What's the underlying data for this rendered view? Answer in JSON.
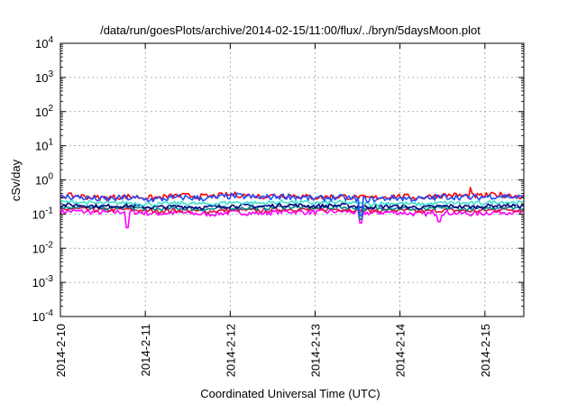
{
  "chart_data": {
    "type": "line",
    "title": "/data/run/goesPlots/archive/2014-02-15/11:00/flux/../bryn/5daysMoon.plot",
    "xlabel": "Coordinated Universal Time (UTC)",
    "ylabel": "cSv/day",
    "yscale": "log",
    "ylim": [
      0.0001,
      10000
    ],
    "xlim": [
      "2014-02-10T00:00",
      "2014-02-15T11:00"
    ],
    "grid": true,
    "x_ticks": [
      "2014-2-10",
      "2014-2-11",
      "2014-2-12",
      "2014-2-13",
      "2014-2-14",
      "2014-2-15"
    ],
    "y_ticks": [
      {
        "base": "10",
        "exp": "-4"
      },
      {
        "base": "10",
        "exp": "-3"
      },
      {
        "base": "10",
        "exp": "-2"
      },
      {
        "base": "10",
        "exp": "-1"
      },
      {
        "base": "10",
        "exp": "0"
      },
      {
        "base": "10",
        "exp": "1"
      },
      {
        "base": "10",
        "exp": "2"
      },
      {
        "base": "10",
        "exp": "3"
      },
      {
        "base": "10",
        "exp": "4"
      }
    ],
    "series": [
      {
        "color": "#ff00ff",
        "level": 0.11,
        "spread": 0.14,
        "dips": [
          [
            "2014-02-10T19:00",
            0.04
          ],
          [
            "2014-02-13T13:00",
            0.055
          ],
          [
            "2014-02-14T11:00",
            0.06
          ]
        ]
      },
      {
        "color": "#e0143c",
        "level": 0.13,
        "spread": 0.12,
        "dips": []
      },
      {
        "color": "#008b8b",
        "level": 0.15,
        "spread": 0.12,
        "dips": [
          [
            "2014-02-13T13:00",
            0.07
          ]
        ]
      },
      {
        "color": "#000080",
        "level": 0.17,
        "spread": 0.12,
        "dips": []
      },
      {
        "color": "#40e0d0",
        "level": 0.21,
        "spread": 0.12,
        "dips": []
      },
      {
        "color": "#ff0000",
        "level": 0.33,
        "spread": 0.16,
        "dips": [
          [
            "2014-02-14T20:00",
            0.6
          ]
        ]
      },
      {
        "color": "#1e50ff",
        "level": 0.3,
        "spread": 0.18,
        "dips": [
          [
            "2014-02-13T13:00",
            0.09
          ]
        ]
      }
    ]
  }
}
